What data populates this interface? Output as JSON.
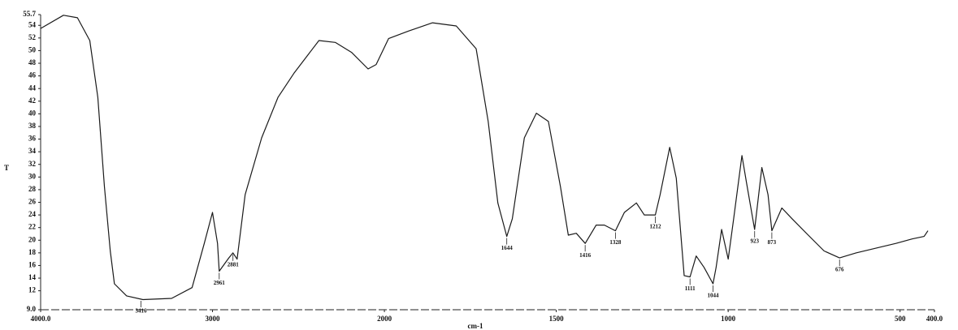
{
  "chart_data": {
    "type": "line",
    "y_label": "T",
    "x_label": "cm-1",
    "color": "#1a1a1a",
    "xlim": [
      4000,
      400
    ],
    "x_scale_break": 2000,
    "x_scale_ratio": 2,
    "xticks": [
      {
        "value": 4000,
        "label": "4000.0"
      },
      3000,
      2000,
      1500,
      1000,
      500,
      {
        "value": 400,
        "label": "400.0"
      }
    ],
    "ylim": [
      9.0,
      55.7
    ],
    "yticks": [
      {
        "value": 9,
        "label": "9.0"
      },
      12,
      14,
      16,
      18,
      20,
      22,
      24,
      26,
      28,
      30,
      32,
      34,
      36,
      38,
      40,
      42,
      44,
      46,
      48,
      50,
      52,
      54,
      55.7
    ],
    "x": [
      4000,
      3867,
      3786,
      3714,
      3667,
      3629,
      3595,
      3571,
      3500,
      3405,
      3238,
      3119,
      3048,
      3000,
      2971,
      2961,
      2905,
      2881,
      2857,
      2810,
      2714,
      2619,
      2524,
      2381,
      2286,
      2190,
      2095,
      2048,
      1988,
      1930,
      1860,
      1791,
      1733,
      1698,
      1670,
      1644,
      1628,
      1593,
      1558,
      1523,
      1488,
      1465,
      1442,
      1416,
      1384,
      1360,
      1328,
      1302,
      1267,
      1244,
      1212,
      1198,
      1170,
      1151,
      1128,
      1111,
      1093,
      1070,
      1044,
      1035,
      1019,
      1000,
      984,
      960,
      947,
      923,
      902,
      884,
      873,
      844,
      814,
      767,
      721,
      676,
      628,
      558,
      512,
      465,
      430,
      419
    ],
    "values": [
      53.5,
      55.6,
      55.2,
      51.6,
      42.6,
      28.5,
      18.3,
      13.1,
      11.2,
      10.6,
      10.8,
      12.5,
      19.5,
      24.4,
      19.5,
      15.1,
      17.2,
      18.0,
      17.0,
      27.2,
      36.2,
      42.6,
      46.5,
      51.6,
      51.3,
      49.7,
      47.1,
      47.8,
      51.9,
      53.1,
      54.4,
      53.9,
      50.3,
      38.8,
      25.9,
      20.6,
      23.4,
      36.2,
      40.1,
      38.8,
      28.5,
      20.8,
      21.1,
      19.5,
      22.4,
      22.4,
      21.5,
      24.4,
      25.9,
      24.0,
      24.0,
      27.2,
      34.7,
      29.8,
      14.4,
      14.2,
      17.5,
      15.7,
      13.1,
      15.7,
      21.7,
      17.0,
      23.4,
      33.4,
      29.2,
      21.7,
      31.5,
      27.2,
      21.5,
      25.1,
      23.4,
      20.8,
      18.3,
      17.2,
      18.0,
      18.9,
      19.5,
      20.2,
      20.6,
      21.5
    ],
    "peaks": [
      3416,
      2961,
      2881,
      1644,
      1416,
      1328,
      1212,
      1111,
      1044,
      923,
      873,
      676
    ]
  }
}
